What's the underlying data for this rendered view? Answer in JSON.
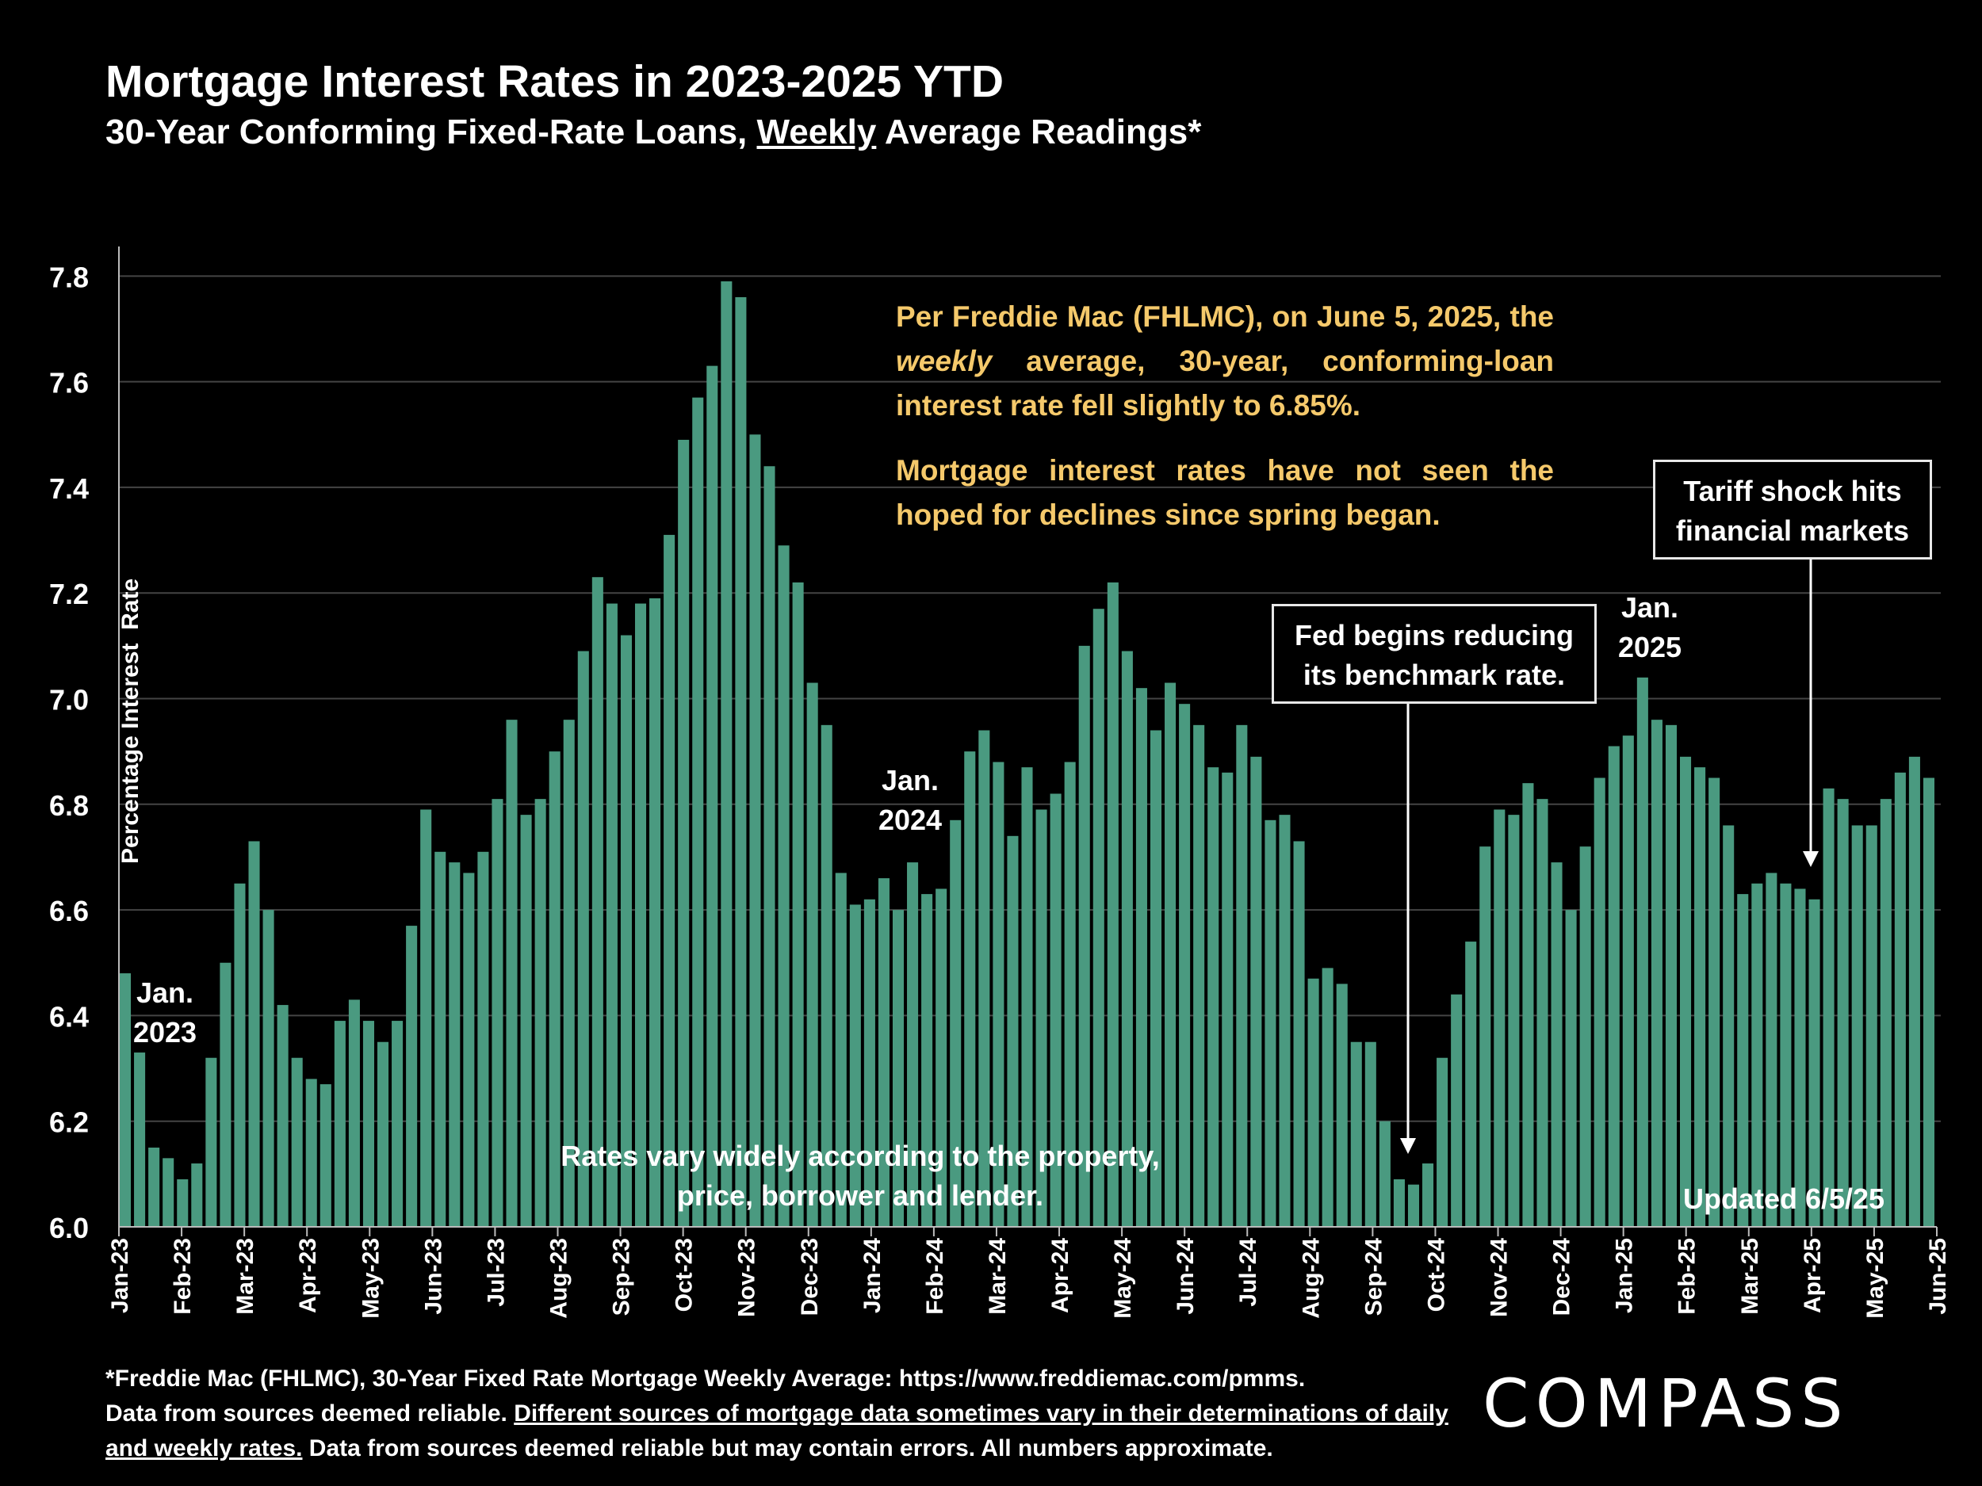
{
  "header": {
    "title": "Mortgage Interest Rates in 2023-2025 YTD",
    "subtitle_pre": "30-Year Conforming Fixed-Rate Loans, ",
    "subtitle_underlined": "Weekly",
    "subtitle_post": " Average Readings*"
  },
  "annotations": {
    "note_line1": "Per Freddie Mac (FHLMC), on June 5, 2025, the ",
    "note_italic": "weekly",
    "note_line1b": " average, 30-year, conforming-loan interest rate fell slightly to 6.85%.",
    "note_line2": "Mortgage interest rates have not seen the hoped for declines since spring began.",
    "fed_callout": "Fed begins reducing its benchmark rate.",
    "tariff_callout": "Tariff shock hits financial markets",
    "year_2023": "Jan. 2023",
    "year_2024": "Jan. 2024",
    "year_2025": "Jan. 2025",
    "rates_vary": "Rates vary widely according to the property, price, borrower and lender.",
    "updated": "Updated 6/5/25"
  },
  "footer": {
    "line1": "*Freddie Mac (FHLMC), 30-Year Fixed Rate Mortgage Weekly Average:  https://www.freddiemac.com/pmms.",
    "line2_pre": "Data from sources deemed reliable. ",
    "line2_underlined": "Different sources of mortgage data sometimes vary in their determinations of daily and weekly rates.",
    "line2_post": " Data from sources deemed reliable but may contain errors. All numbers approximate."
  },
  "logo": "COMPASS",
  "colors": {
    "bar": "#4a9a80",
    "note": "#f5c96b",
    "grid": "#444444",
    "axis": "#bbbbbb",
    "background": "#000000"
  },
  "chart_data": {
    "type": "bar",
    "title": "Mortgage Interest Rates in 2023-2025 YTD",
    "ylabel": "Percentage Interest  Rate",
    "xlabel": "",
    "ylim": [
      6.0,
      7.85
    ],
    "yticks": [
      "6.0",
      "6.2",
      "6.4",
      "6.6",
      "6.8",
      "7.0",
      "7.2",
      "7.4",
      "7.6",
      "7.8"
    ],
    "month_ticks": [
      "Jan-23",
      "Feb-23",
      "Mar-23",
      "Apr-23",
      "May-23",
      "Jun-23",
      "Jul-23",
      "Aug-23",
      "Sep-23",
      "Oct-23",
      "Nov-23",
      "Dec-23",
      "Jan-24",
      "Feb-24",
      "Mar-24",
      "Apr-24",
      "May-24",
      "Jun-24",
      "Jul-24",
      "Aug-24",
      "Sep-24",
      "Oct-24",
      "Nov-24",
      "Dec-24",
      "Jan-25",
      "Feb-25",
      "Mar-25",
      "Apr-25",
      "May-25",
      "Jun-25"
    ],
    "series": [
      {
        "name": "30-Year Fixed Rate Weekly Average",
        "values": [
          6.48,
          6.33,
          6.15,
          6.13,
          6.09,
          6.12,
          6.32,
          6.5,
          6.65,
          6.73,
          6.6,
          6.42,
          6.32,
          6.28,
          6.27,
          6.39,
          6.43,
          6.39,
          6.35,
          6.39,
          6.57,
          6.79,
          6.71,
          6.69,
          6.67,
          6.71,
          6.81,
          6.96,
          6.78,
          6.81,
          6.9,
          6.96,
          7.09,
          7.23,
          7.18,
          7.12,
          7.18,
          7.19,
          7.31,
          7.49,
          7.57,
          7.63,
          7.79,
          7.76,
          7.5,
          7.44,
          7.29,
          7.22,
          7.03,
          6.95,
          6.67,
          6.61,
          6.62,
          6.66,
          6.6,
          6.69,
          6.63,
          6.64,
          6.77,
          6.9,
          6.94,
          6.88,
          6.74,
          6.87,
          6.79,
          6.82,
          6.88,
          7.1,
          7.17,
          7.22,
          7.09,
          7.02,
          6.94,
          7.03,
          6.99,
          6.95,
          6.87,
          6.86,
          6.95,
          6.89,
          6.77,
          6.78,
          6.73,
          6.47,
          6.49,
          6.46,
          6.35,
          6.35,
          6.2,
          6.09,
          6.08,
          6.12,
          6.32,
          6.44,
          6.54,
          6.72,
          6.79,
          6.78,
          6.84,
          6.81,
          6.69,
          6.6,
          6.72,
          6.85,
          6.91,
          6.93,
          7.04,
          6.96,
          6.95,
          6.89,
          6.87,
          6.85,
          6.76,
          6.63,
          6.65,
          6.67,
          6.65,
          6.64,
          6.62,
          6.83,
          6.81,
          6.76,
          6.76,
          6.81,
          6.86,
          6.89,
          6.85
        ]
      }
    ]
  }
}
